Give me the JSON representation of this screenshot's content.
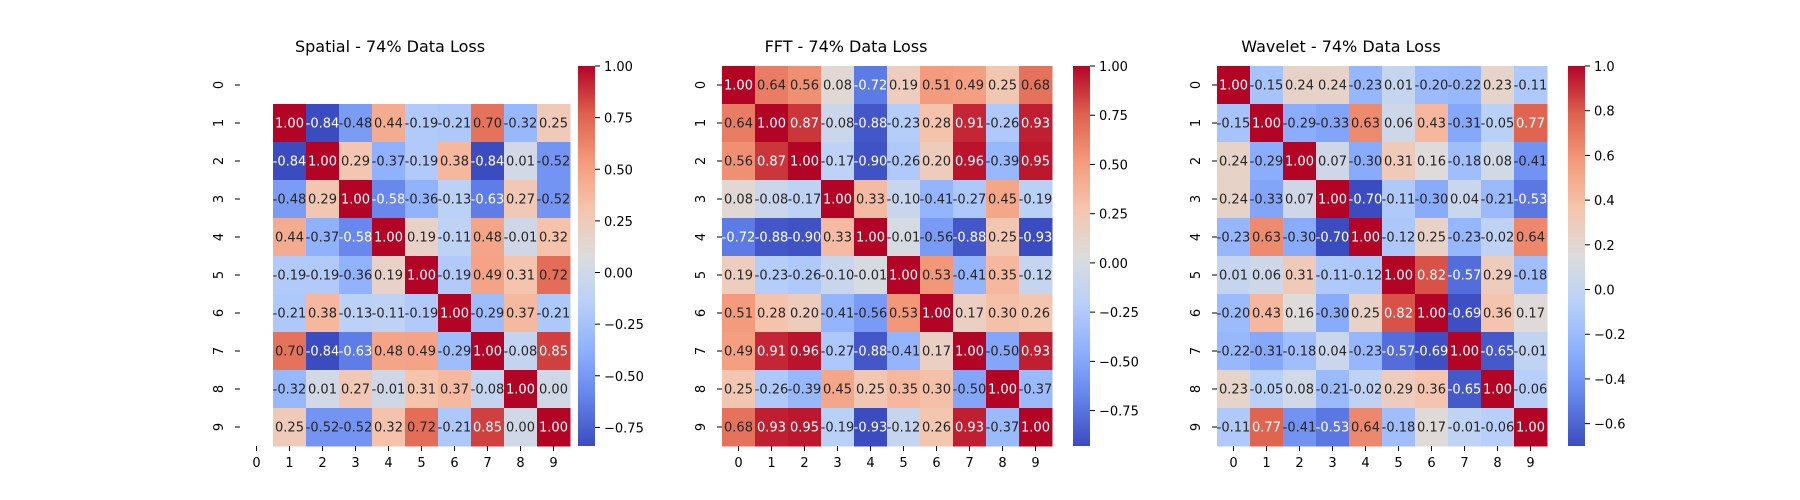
{
  "chart_data": [
    {
      "type": "heatmap",
      "title": "Spatial - 74% Data Loss",
      "x_labels": [
        "0",
        "1",
        "2",
        "3",
        "4",
        "5",
        "6",
        "7",
        "8",
        "9"
      ],
      "y_labels": [
        "0",
        "1",
        "2",
        "3",
        "4",
        "5",
        "6",
        "7",
        "8",
        "9"
      ],
      "values": [
        [
          null,
          null,
          null,
          null,
          null,
          null,
          null,
          null,
          null,
          null
        ],
        [
          null,
          1.0,
          -0.84,
          -0.48,
          0.44,
          -0.19,
          -0.21,
          0.7,
          -0.32,
          0.25
        ],
        [
          null,
          -0.84,
          1.0,
          0.29,
          -0.37,
          -0.19,
          0.38,
          -0.84,
          0.01,
          -0.52
        ],
        [
          null,
          -0.48,
          0.29,
          1.0,
          -0.58,
          -0.36,
          -0.13,
          -0.63,
          0.27,
          -0.52
        ],
        [
          null,
          0.44,
          -0.37,
          -0.58,
          1.0,
          0.19,
          -0.11,
          0.48,
          -0.01,
          0.32
        ],
        [
          null,
          -0.19,
          -0.19,
          -0.36,
          0.19,
          1.0,
          -0.19,
          0.49,
          0.31,
          0.72
        ],
        [
          null,
          -0.21,
          0.38,
          -0.13,
          -0.11,
          -0.19,
          1.0,
          -0.29,
          0.37,
          -0.21
        ],
        [
          null,
          0.7,
          -0.84,
          -0.63,
          0.48,
          0.49,
          -0.29,
          1.0,
          -0.08,
          0.85
        ],
        [
          null,
          -0.32,
          0.01,
          0.27,
          -0.01,
          0.31,
          0.37,
          -0.08,
          1.0,
          0.0
        ],
        [
          null,
          0.25,
          -0.52,
          -0.52,
          0.32,
          0.72,
          -0.21,
          0.85,
          0.0,
          1.0
        ]
      ],
      "color_range": [
        -0.84,
        1.0
      ],
      "colorbar_ticks": [
        1.0,
        0.75,
        0.5,
        0.25,
        0.0,
        -0.25,
        -0.5,
        -0.75
      ],
      "colorbar_tick_labels": [
        "1.00",
        "0.75",
        "0.50",
        "0.25",
        "0.00",
        "−0.25",
        "−0.50",
        "−0.75"
      ],
      "colormap": "coolwarm",
      "annotation_format": "2 decimals"
    },
    {
      "type": "heatmap",
      "title": "FFT - 74% Data Loss",
      "x_labels": [
        "0",
        "1",
        "2",
        "3",
        "4",
        "5",
        "6",
        "7",
        "8",
        "9"
      ],
      "y_labels": [
        "0",
        "1",
        "2",
        "3",
        "4",
        "5",
        "6",
        "7",
        "8",
        "9"
      ],
      "values": [
        [
          1.0,
          0.64,
          0.56,
          0.08,
          -0.72,
          0.19,
          0.51,
          0.49,
          0.25,
          0.68
        ],
        [
          0.64,
          1.0,
          0.87,
          -0.08,
          -0.88,
          -0.23,
          0.28,
          0.91,
          -0.26,
          0.93
        ],
        [
          0.56,
          0.87,
          1.0,
          -0.17,
          -0.9,
          -0.26,
          0.2,
          0.96,
          -0.39,
          0.95
        ],
        [
          0.08,
          -0.08,
          -0.17,
          1.0,
          0.33,
          -0.1,
          -0.41,
          -0.27,
          0.45,
          -0.19
        ],
        [
          -0.72,
          -0.88,
          -0.9,
          0.33,
          1.0,
          -0.01,
          -0.56,
          -0.88,
          0.25,
          -0.93
        ],
        [
          0.19,
          -0.23,
          -0.26,
          -0.1,
          -0.01,
          1.0,
          0.53,
          -0.41,
          0.35,
          -0.12
        ],
        [
          0.51,
          0.28,
          0.2,
          -0.41,
          -0.56,
          0.53,
          1.0,
          0.17,
          0.3,
          0.26
        ],
        [
          0.49,
          0.91,
          0.96,
          -0.27,
          -0.88,
          -0.41,
          0.17,
          1.0,
          -0.5,
          0.93
        ],
        [
          0.25,
          -0.26,
          -0.39,
          0.45,
          0.25,
          0.35,
          0.3,
          -0.5,
          1.0,
          -0.37
        ],
        [
          0.68,
          0.93,
          0.95,
          -0.19,
          -0.93,
          -0.12,
          0.26,
          0.93,
          -0.37,
          1.0
        ]
      ],
      "color_range": [
        -0.93,
        1.0
      ],
      "colorbar_ticks": [
        1.0,
        0.75,
        0.5,
        0.25,
        0.0,
        -0.25,
        -0.5,
        -0.75
      ],
      "colorbar_tick_labels": [
        "1.00",
        "0.75",
        "0.50",
        "0.25",
        "0.00",
        "−0.25",
        "−0.50",
        "−0.75"
      ],
      "colormap": "coolwarm",
      "annotation_format": "2 decimals"
    },
    {
      "type": "heatmap",
      "title": "Wavelet - 74% Data Loss",
      "x_labels": [
        "0",
        "1",
        "2",
        "3",
        "4",
        "5",
        "6",
        "7",
        "8",
        "9"
      ],
      "y_labels": [
        "0",
        "1",
        "2",
        "3",
        "4",
        "5",
        "6",
        "7",
        "8",
        "9"
      ],
      "values": [
        [
          1.0,
          -0.15,
          0.24,
          0.24,
          -0.23,
          0.01,
          -0.2,
          -0.22,
          0.23,
          -0.11
        ],
        [
          -0.15,
          1.0,
          -0.29,
          -0.33,
          0.63,
          0.06,
          0.43,
          -0.31,
          -0.05,
          0.77
        ],
        [
          0.24,
          -0.29,
          1.0,
          0.07,
          -0.3,
          0.31,
          0.16,
          -0.18,
          0.08,
          -0.41
        ],
        [
          0.24,
          -0.33,
          0.07,
          1.0,
          -0.7,
          -0.11,
          -0.3,
          0.04,
          -0.21,
          -0.53
        ],
        [
          -0.23,
          0.63,
          -0.3,
          -0.7,
          1.0,
          -0.12,
          0.25,
          -0.23,
          -0.02,
          0.64
        ],
        [
          0.01,
          0.06,
          0.31,
          -0.11,
          -0.12,
          1.0,
          0.82,
          -0.57,
          0.29,
          -0.18
        ],
        [
          -0.2,
          0.43,
          0.16,
          -0.3,
          0.25,
          0.82,
          1.0,
          -0.69,
          0.36,
          0.17
        ],
        [
          -0.22,
          -0.31,
          -0.18,
          0.04,
          -0.23,
          -0.57,
          -0.69,
          1.0,
          -0.65,
          -0.01
        ],
        [
          0.23,
          -0.05,
          0.08,
          -0.21,
          -0.02,
          0.29,
          0.36,
          -0.65,
          1.0,
          -0.06
        ],
        [
          -0.11,
          0.77,
          -0.41,
          -0.53,
          0.64,
          -0.18,
          0.17,
          -0.01,
          -0.06,
          1.0
        ]
      ],
      "color_range": [
        -0.7,
        1.0
      ],
      "colorbar_ticks": [
        1.0,
        0.8,
        0.6,
        0.4,
        0.2,
        0.0,
        -0.2,
        -0.4,
        -0.6
      ],
      "colorbar_tick_labels": [
        "1.0",
        "0.8",
        "0.6",
        "0.4",
        "0.2",
        "0.0",
        "−0.2",
        "−0.4",
        "−0.6"
      ],
      "colormap": "coolwarm",
      "annotation_format": "2 decimals"
    }
  ]
}
